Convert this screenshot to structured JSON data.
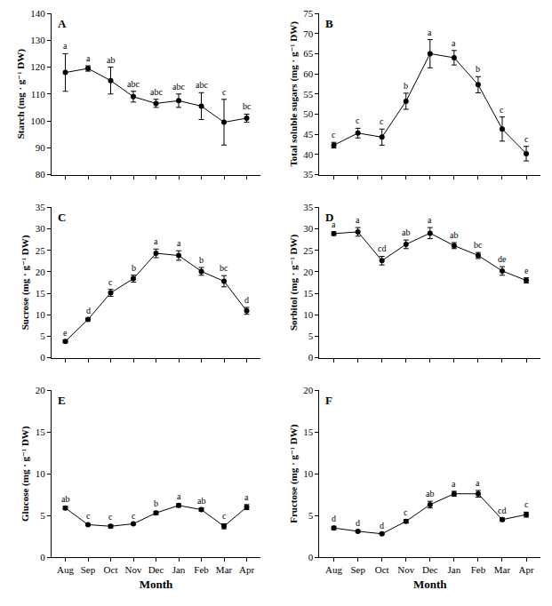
{
  "chart_data": [
    {
      "type": "line",
      "title": "A",
      "y_label": "Starch (mg · g⁻¹ DW)",
      "categories": [
        "Aug",
        "Sep",
        "Oct",
        "Nov",
        "Dec",
        "Jan",
        "Feb",
        "Mar",
        "Apr"
      ],
      "ylim": [
        80,
        140
      ],
      "yticks": [
        80,
        90,
        100,
        110,
        120,
        130,
        140
      ],
      "tick_labels": "y",
      "series": [
        {
          "name": "Starch",
          "color": "#000000",
          "marker": "circle",
          "line_style": "solid",
          "values": [
            118,
            119.5,
            115,
            109,
            106.5,
            107.5,
            105.5,
            99.5,
            101
          ],
          "errors": [
            7,
            1,
            5,
            2,
            1.5,
            2.5,
            5,
            8.5,
            1.5
          ],
          "point_labels": [
            "a",
            "a",
            "ab",
            "abc",
            "abc",
            "abc",
            "abc",
            "c",
            "bc"
          ]
        }
      ]
    },
    {
      "type": "line",
      "title": "B",
      "y_label": "Total soluble sugars (mg · g⁻¹ DW)",
      "categories": [
        "Aug",
        "Sep",
        "Oct",
        "Nov",
        "Dec",
        "Jan",
        "Feb",
        "Mar",
        "Apr"
      ],
      "ylim": [
        35,
        75
      ],
      "yticks": [
        35,
        40,
        45,
        50,
        55,
        60,
        65,
        70,
        75
      ],
      "tick_labels": "y",
      "series": [
        {
          "name": "Total soluble sugars",
          "color": "#000000",
          "marker": "circle",
          "line_style": "solid",
          "values": [
            42.3,
            45.3,
            44.3,
            53.2,
            65,
            64,
            57.3,
            46.3,
            40.2
          ],
          "errors": [
            0.7,
            1.2,
            2,
            2,
            3.5,
            1.8,
            2,
            3,
            1.8
          ],
          "point_labels": [
            "c",
            "c",
            "c",
            "b",
            "a",
            "a",
            "b",
            "c",
            "c"
          ]
        }
      ]
    },
    {
      "type": "line",
      "title": "C",
      "y_label": "Sucrose (mg · g⁻¹ DW)",
      "categories": [
        "Aug",
        "Sep",
        "Oct",
        "Nov",
        "Dec",
        "Jan",
        "Feb",
        "Mar",
        "Apr"
      ],
      "ylim": [
        0,
        35
      ],
      "yticks": [
        0,
        5,
        10,
        15,
        20,
        25,
        30,
        35
      ],
      "tick_labels": "y",
      "series": [
        {
          "name": "Sucrose",
          "color": "#000000",
          "marker": "circle",
          "line_style": "solid",
          "values": [
            3.8,
            8.9,
            15.1,
            18.4,
            24.3,
            23.8,
            20.1,
            17.8,
            10.9
          ],
          "errors": [
            0.3,
            0.3,
            0.8,
            0.8,
            1,
            1.1,
            0.9,
            1.3,
            0.8
          ],
          "point_labels": [
            "e",
            "d",
            "c",
            "b",
            "a",
            "a",
            "b",
            "bc",
            "d"
          ]
        }
      ]
    },
    {
      "type": "line",
      "title": "D",
      "y_label": "Sorbitol (mg · g⁻¹ DW)",
      "categories": [
        "Aug",
        "Sep",
        "Oct",
        "Nov",
        "Dec",
        "Jan",
        "Feb",
        "Mar",
        "Apr"
      ],
      "ylim": [
        0,
        35
      ],
      "yticks": [
        0,
        5,
        10,
        15,
        20,
        25,
        30,
        35
      ],
      "tick_labels": "y",
      "series": [
        {
          "name": "Sorbitol",
          "color": "#000000",
          "marker": "circle",
          "line_style": "solid",
          "values": [
            28.9,
            29.3,
            22.6,
            26.4,
            29,
            26.1,
            23.8,
            20.2,
            18
          ],
          "errors": [
            0.4,
            1,
            1,
            1,
            1.3,
            0.7,
            0.7,
            1,
            0.6
          ],
          "point_labels": [
            "a",
            "a",
            "cd",
            "ab",
            "a",
            "ab",
            "bc",
            "de",
            "e"
          ]
        }
      ]
    },
    {
      "type": "line",
      "title": "E",
      "y_label": "Glucose (mg · g⁻¹ DW)",
      "x_label": "Month",
      "categories": [
        "Aug",
        "Sep",
        "Oct",
        "Nov",
        "Dec",
        "Jan",
        "Feb",
        "Mar",
        "Apr"
      ],
      "ylim": [
        0,
        20
      ],
      "yticks": [
        0,
        5,
        10,
        15,
        20
      ],
      "series": [
        {
          "name": "Glucose",
          "color": "#000000",
          "marker": "circle",
          "line_style": "solid",
          "values": [
            5.9,
            3.9,
            3.7,
            4,
            5.3,
            6.2,
            5.7,
            3.7,
            6
          ],
          "errors": [
            0.2,
            0.1,
            0.2,
            0.1,
            0.2,
            0.2,
            0.2,
            0.3,
            0.3
          ],
          "point_labels": [
            "ab",
            "c",
            "c",
            "c",
            "b",
            "a",
            "ab",
            "c",
            "a"
          ]
        }
      ]
    },
    {
      "type": "line",
      "title": "F",
      "y_label": "Fructose (mg · g⁻¹ DW)",
      "x_label": "Month",
      "categories": [
        "Aug",
        "Sep",
        "Oct",
        "Nov",
        "Dec",
        "Jan",
        "Feb",
        "Mar",
        "Apr"
      ],
      "ylim": [
        0,
        20
      ],
      "yticks": [
        0,
        5,
        10,
        15,
        20
      ],
      "series": [
        {
          "name": "Fructose",
          "color": "#000000",
          "marker": "circle",
          "line_style": "solid",
          "values": [
            3.5,
            3.1,
            2.8,
            4.3,
            6.3,
            7.6,
            7.6,
            4.5,
            5.1
          ],
          "errors": [
            0.2,
            0.1,
            0.1,
            0.2,
            0.4,
            0.3,
            0.4,
            0.2,
            0.3
          ],
          "point_labels": [
            "d",
            "d",
            "d",
            "c",
            "ab",
            "a",
            "a",
            "cd",
            "c"
          ]
        }
      ]
    }
  ]
}
